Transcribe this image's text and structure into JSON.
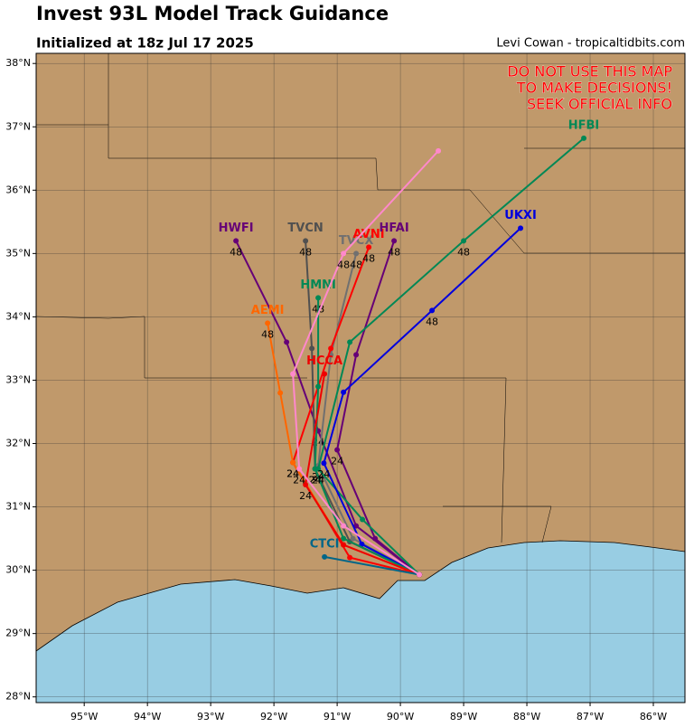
{
  "chart_data": {
    "type": "track-map",
    "title": "Invest 93L Model Track Guidance",
    "subtitle": "Initialized at 18z Jul 17 2025",
    "credit": "Levi Cowan - tropicaltidbits.com",
    "warning": [
      "DO NOT USE THIS MAP",
      "TO MAKE DECISIONS!",
      "SEEK OFFICIAL INFO"
    ],
    "xlim": [
      -95.76,
      -85.5
    ],
    "ylim": [
      27.91,
      38.16
    ],
    "xticks": [
      {
        "value": -95,
        "label": "95°W"
      },
      {
        "value": -94,
        "label": "94°W"
      },
      {
        "value": -93,
        "label": "93°W"
      },
      {
        "value": -92,
        "label": "92°W"
      },
      {
        "value": -91,
        "label": "91°W"
      },
      {
        "value": -90,
        "label": "90°W"
      },
      {
        "value": -89,
        "label": "89°W"
      },
      {
        "value": -88,
        "label": "88°W"
      },
      {
        "value": -87,
        "label": "87°W"
      },
      {
        "value": -86,
        "label": "86°W"
      }
    ],
    "yticks": [
      {
        "value": 28,
        "label": "28°N"
      },
      {
        "value": 29,
        "label": "29°N"
      },
      {
        "value": 30,
        "label": "30°N"
      },
      {
        "value": 31,
        "label": "31°N"
      },
      {
        "value": 32,
        "label": "32°N"
      },
      {
        "value": 33,
        "label": "33°N"
      },
      {
        "value": 34,
        "label": "34°N"
      },
      {
        "value": 35,
        "label": "35°N"
      },
      {
        "value": 36,
        "label": "36°N"
      },
      {
        "value": 37,
        "label": "37°N"
      },
      {
        "value": 38,
        "label": "38°N"
      }
    ],
    "grid": true,
    "hours": [
      0,
      12,
      24,
      36,
      48,
      60
    ],
    "label_hours": [
      24,
      48
    ],
    "series": [
      {
        "name": "HWFI",
        "color": "#660077",
        "lon": [
          -89.7,
          -90.7,
          -91.3,
          -91.8,
          -92.6,
          null
        ],
        "lat": [
          29.93,
          30.7,
          32.2,
          33.6,
          35.2,
          null
        ]
      },
      {
        "name": "TVCN",
        "color": "#505050",
        "lon": [
          -89.7,
          -90.8,
          -91.35,
          -91.4,
          -91.5,
          null
        ],
        "lat": [
          29.93,
          30.45,
          31.6,
          33.5,
          35.2,
          null
        ]
      },
      {
        "name": "TVCX",
        "color": "#707070",
        "lon": [
          -89.7,
          -90.75,
          -91.3,
          -91.1,
          -90.7,
          null
        ],
        "lat": [
          29.93,
          30.5,
          31.65,
          33.4,
          35.0,
          null
        ]
      },
      {
        "name": "AVNI",
        "color": "#ff0000",
        "lon": [
          -89.7,
          -90.8,
          -91.7,
          -91.1,
          -90.5,
          null
        ],
        "lat": [
          29.93,
          30.2,
          31.7,
          33.5,
          35.1,
          null
        ]
      },
      {
        "name": "HFAI",
        "color": "#660077",
        "lon": [
          -89.7,
          -90.4,
          -91.0,
          -90.7,
          -90.1,
          null
        ],
        "lat": [
          29.93,
          30.5,
          31.9,
          33.4,
          35.2,
          null
        ]
      },
      {
        "name": "HFBI",
        "color": "#008855",
        "lon": [
          -89.7,
          -90.6,
          -91.3,
          -90.8,
          -89.0,
          -87.1
        ],
        "lat": [
          29.93,
          30.8,
          31.6,
          33.6,
          35.2,
          36.82
        ]
      },
      {
        "name": "UKXI",
        "color": "#0000dd",
        "lon": [
          -89.7,
          -90.61,
          -91.21,
          -90.9,
          -89.5,
          -88.1
        ],
        "lat": [
          29.93,
          30.41,
          31.69,
          32.81,
          34.1,
          35.4
        ]
      },
      {
        "name": "HMNI",
        "color": "#008855",
        "lon": [
          -89.7,
          -90.9,
          -91.35,
          -91.3,
          -91.3,
          null
        ],
        "lat": [
          29.93,
          30.5,
          31.6,
          32.9,
          34.3,
          null
        ]
      },
      {
        "name": "AEMI",
        "color": "#ff6600",
        "lon": [
          -89.7,
          -90.9,
          -91.7,
          -91.9,
          -92.1,
          null
        ],
        "lat": [
          29.93,
          30.4,
          31.7,
          32.8,
          33.9,
          null
        ]
      },
      {
        "name": "HCCA",
        "color": "#ee0000",
        "lon": [
          -89.7,
          -90.9,
          -91.5,
          -91.2,
          null,
          null
        ],
        "lat": [
          29.93,
          30.4,
          31.35,
          33.1,
          null,
          null
        ]
      },
      {
        "name": "CTCI",
        "color": "#006688",
        "lon": [
          -89.7,
          -91.2,
          null,
          null,
          null,
          null
        ],
        "lat": [
          29.93,
          30.21,
          null,
          null,
          null,
          null
        ]
      },
      {
        "color": "#ff88cc",
        "lon": [
          -89.7,
          -90.9,
          -91.6,
          -91.7,
          -90.9,
          -89.4
        ],
        "lat": [
          29.93,
          30.7,
          31.6,
          33.1,
          35.0,
          36.62
        ]
      }
    ]
  }
}
